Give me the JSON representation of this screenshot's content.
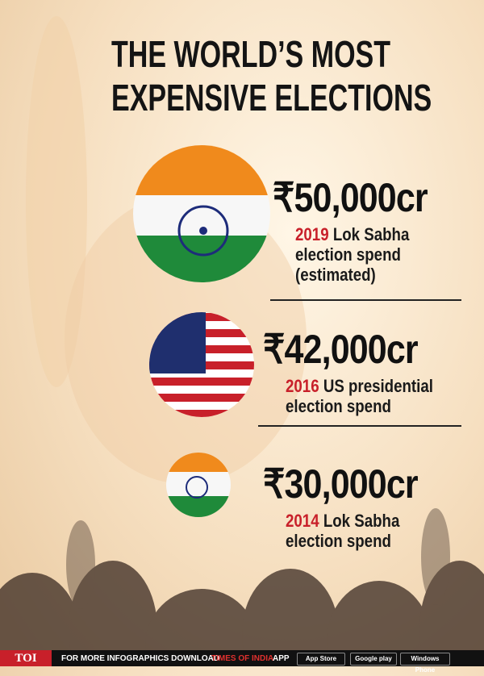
{
  "title": [
    "THE WORLD’S MOST",
    "EXPENSIVE ELECTIONS"
  ],
  "items": [
    {
      "amount": "₹50,000cr",
      "year": "2019",
      "lines": [
        "Lok Sabha",
        "election spend",
        "(estimated)"
      ]
    },
    {
      "amount": "₹42,000cr",
      "year": "2016",
      "lines": [
        "US presidential",
        "election spend"
      ]
    },
    {
      "amount": "₹30,000cr",
      "year": "2014",
      "lines": [
        "Lok Sabha",
        "election spend"
      ]
    }
  ],
  "footer": {
    "brand": "TOI",
    "text": "FOR MORE INFOGRAPHICS DOWNLOAD",
    "highlight": "TIMES OF INDIA",
    "tail": "APP",
    "badges": [
      "App Store",
      "Google play",
      "Windows Phone"
    ]
  }
}
